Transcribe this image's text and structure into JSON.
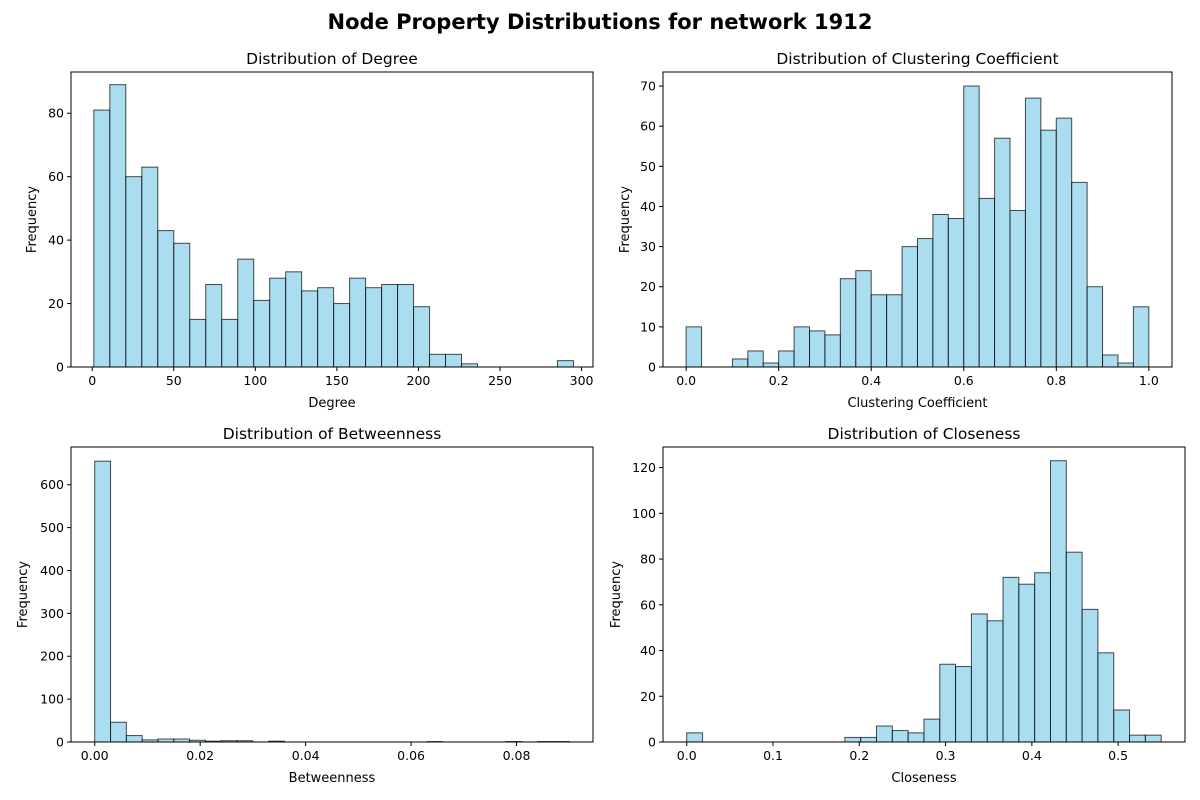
{
  "suptitle": "Node Property Distributions for network 1912",
  "colors": {
    "bar_fill": "#87ceeb",
    "bar_edge": "#000000"
  },
  "chart_data": [
    {
      "type": "bar",
      "title": "Distribution of Degree",
      "xlabel": "Degree",
      "ylabel": "Frequency",
      "xlim": [
        -13,
        307
      ],
      "ylim": [
        0,
        93
      ],
      "xticks": [
        0,
        50,
        100,
        150,
        200,
        250,
        300
      ],
      "xtick_labels": [
        "0",
        "50",
        "100",
        "150",
        "200",
        "250",
        "300"
      ],
      "yticks": [
        0,
        20,
        40,
        60,
        80
      ],
      "ytick_labels": [
        "0",
        "20",
        "40",
        "60",
        "80"
      ],
      "bin_start": 1,
      "bin_width": 9.8,
      "values": [
        81,
        89,
        60,
        63,
        43,
        39,
        15,
        26,
        15,
        34,
        21,
        28,
        30,
        24,
        25,
        20,
        28,
        25,
        26,
        26,
        19,
        4,
        4,
        1,
        0,
        0,
        0,
        0,
        0,
        2
      ]
    },
    {
      "type": "bar",
      "title": "Distribution of Clustering Coefficient",
      "xlabel": "Clustering Coefficient",
      "ylabel": "Frequency",
      "xlim": [
        -0.05,
        1.05
      ],
      "ylim": [
        0,
        73.5
      ],
      "xticks": [
        0,
        0.2,
        0.4,
        0.6,
        0.8,
        1.0
      ],
      "xtick_labels": [
        "0.0",
        "0.2",
        "0.4",
        "0.6",
        "0.8",
        "1.0"
      ],
      "yticks": [
        0,
        10,
        20,
        30,
        40,
        50,
        60,
        70
      ],
      "ytick_labels": [
        "0",
        "10",
        "20",
        "30",
        "40",
        "50",
        "60",
        "70"
      ],
      "bin_start": 0,
      "bin_width": 0.03333,
      "values": [
        10,
        0,
        0,
        2,
        4,
        1,
        4,
        10,
        9,
        8,
        22,
        24,
        18,
        18,
        30,
        32,
        38,
        37,
        70,
        42,
        57,
        39,
        67,
        59,
        62,
        46,
        20,
        3,
        1,
        15
      ]
    },
    {
      "type": "bar",
      "title": "Distribution of Betweenness",
      "xlabel": "Betweenness",
      "ylabel": "Frequency",
      "xlim": [
        -0.0045,
        0.0945
      ],
      "ylim": [
        0,
        688
      ],
      "xticks": [
        0,
        0.02,
        0.04,
        0.06,
        0.08
      ],
      "xtick_labels": [
        "0.00",
        "0.02",
        "0.04",
        "0.06",
        "0.08"
      ],
      "yticks": [
        0,
        100,
        200,
        300,
        400,
        500,
        600
      ],
      "ytick_labels": [
        "0",
        "100",
        "200",
        "300",
        "400",
        "500",
        "600"
      ],
      "bin_start": 0,
      "bin_width": 0.003,
      "values": [
        655,
        46,
        15,
        5,
        7,
        7,
        4,
        2,
        3,
        3,
        0,
        2,
        0,
        0,
        0,
        0,
        0,
        0,
        0,
        0,
        0,
        1,
        0,
        0,
        0,
        0,
        1,
        0,
        1,
        1
      ]
    },
    {
      "type": "bar",
      "title": "Distribution of Closeness",
      "xlabel": "Closeness",
      "ylabel": "Frequency",
      "xlim": [
        -0.0275,
        0.5775
      ],
      "ylim": [
        0,
        129
      ],
      "xticks": [
        0,
        0.1,
        0.2,
        0.3,
        0.4,
        0.5
      ],
      "xtick_labels": [
        "0.0",
        "0.1",
        "0.2",
        "0.3",
        "0.4",
        "0.5"
      ],
      "yticks": [
        0,
        20,
        40,
        60,
        80,
        100,
        120
      ],
      "ytick_labels": [
        "0",
        "20",
        "40",
        "60",
        "80",
        "100",
        "120"
      ],
      "bin_start": 0,
      "bin_width": 0.01833,
      "values": [
        4,
        0,
        0,
        0,
        0,
        0,
        0,
        0,
        0,
        0,
        2,
        2,
        7,
        5,
        4,
        10,
        34,
        33,
        56,
        53,
        72,
        69,
        74,
        123,
        83,
        58,
        39,
        14,
        3,
        3
      ]
    }
  ]
}
